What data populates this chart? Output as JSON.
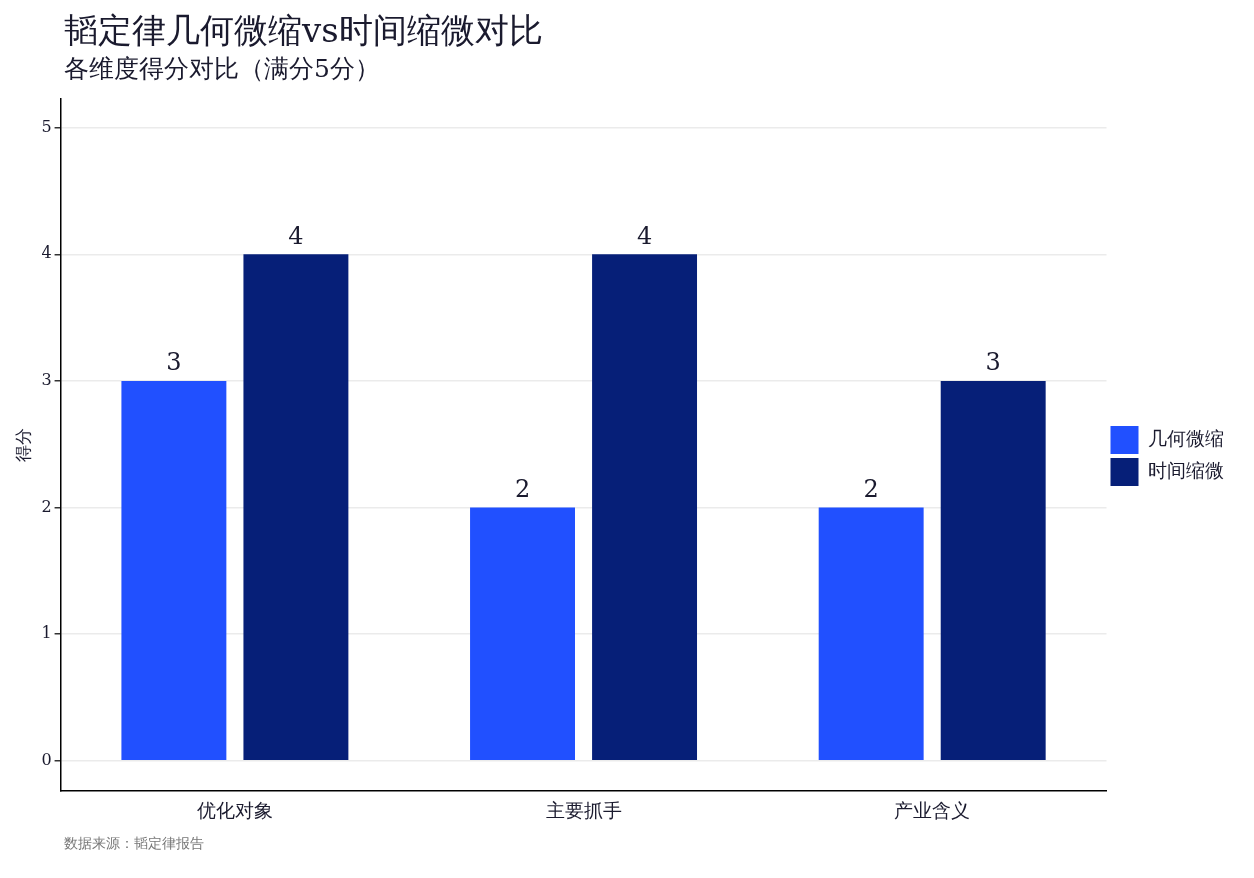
{
  "chart_data": {
    "type": "bar",
    "title": "韬定律几何微缩vs时间缩微对比",
    "subtitle": "各维度得分对比（满分5分）",
    "ylabel": "得分",
    "categories": [
      "优化对象",
      "主要抓手",
      "产业含义"
    ],
    "series": [
      {
        "name": "几何微缩",
        "color": "#2150ff",
        "values": [
          3,
          2,
          2
        ]
      },
      {
        "name": "时间缩微",
        "color": "#061f78",
        "values": [
          4,
          4,
          3
        ]
      }
    ],
    "ylim": [
      -0.24,
      5.23
    ],
    "yticks": [
      0,
      1,
      2,
      3,
      4,
      5
    ],
    "grid": "y",
    "legend": "right",
    "data_labels": true,
    "annotations": [
      "数据来源：韬定律报告"
    ]
  }
}
